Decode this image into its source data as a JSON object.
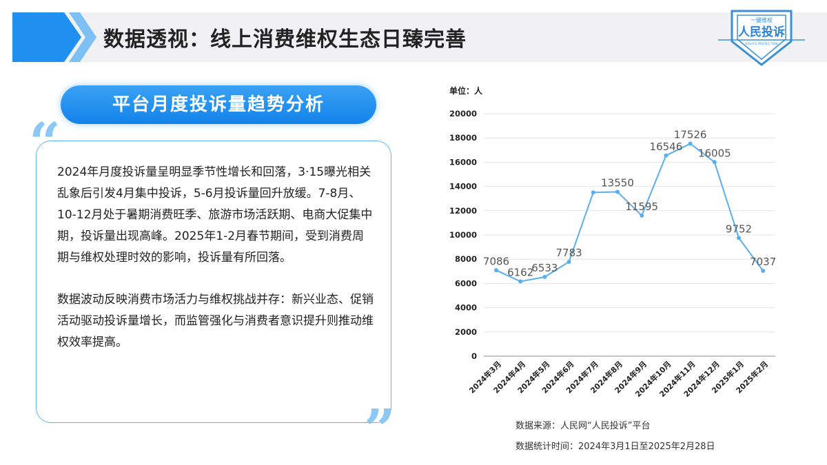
{
  "header": {
    "title": "数据透视：线上消费维权生态日臻完善"
  },
  "logo": {
    "top": "一键维权",
    "main": "人民投诉",
    "sub": "RIGHTS PROTECTION"
  },
  "section": {
    "title": "平台月度投诉量趋势分析"
  },
  "body": {
    "p1": "2024年月度投诉量呈明显季节性增长和回落，3·15曝光相关乱象后引发4月集中投诉，5-6月投诉量回升放缓。7-8月、10-12月处于暑期消费旺季、旅游市场活跃期、电商大促集中期，投诉量出现高峰。2025年1-2月春节期间，受到消费周期与维权处理时效的影响，投诉量有所回落。",
    "p2": "数据波动反映消费市场活力与维权挑战并存：新兴业态、促销活动驱动投诉量增长，而监管强化与消费者意识提升则推动维权效率提高。"
  },
  "chart_data": {
    "type": "line",
    "unit_label": "单位：人",
    "categories": [
      "2024年3月",
      "2024年4月",
      "2024年5月",
      "2024年6月",
      "2024年7月",
      "2024年8月",
      "2024年9月",
      "2024年10月",
      "2024年11月",
      "2024年12月",
      "2025年1月",
      "2025年2月"
    ],
    "values": [
      7086,
      6162,
      6533,
      7783,
      13500,
      13550,
      11595,
      16546,
      17526,
      16005,
      9752,
      7037
    ],
    "data_labels": [
      "7086",
      "6162",
      "6533",
      "7783",
      "",
      "13550",
      "11595",
      "16546",
      "17526",
      "16005",
      "9752",
      "7037"
    ],
    "yticks": [
      0,
      2000,
      4000,
      6000,
      8000,
      10000,
      12000,
      14000,
      16000,
      18000,
      20000
    ],
    "ylim": [
      0,
      20000
    ],
    "grid": true,
    "color": "#5aaeea"
  },
  "footer": {
    "source": "数据来源：人民网“人民投诉”平台",
    "period": "数据统计时间：2024年3月1日至2025年2月28日"
  }
}
